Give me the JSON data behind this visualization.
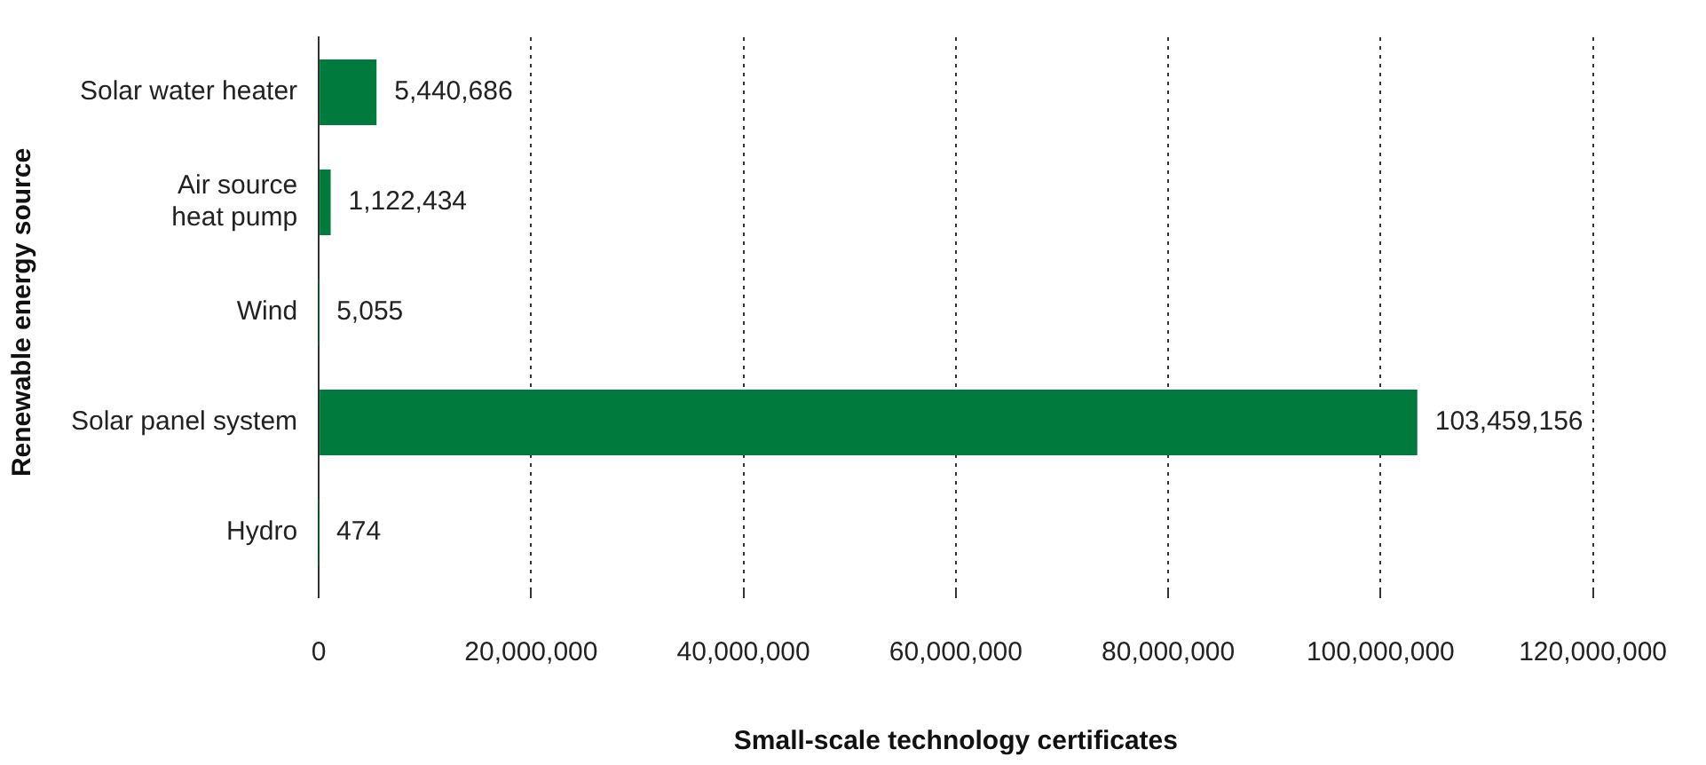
{
  "chart_data": {
    "type": "bar",
    "orientation": "horizontal",
    "xlabel": "Small-scale technology certificates",
    "ylabel": "Renewable energy source",
    "categories": [
      "Solar water heater",
      "Air source\nheat pump",
      "Wind",
      "Solar panel system",
      "Hydro"
    ],
    "values": [
      5440686,
      1122434,
      5055,
      103459156,
      474
    ],
    "value_labels": [
      "5,440,686",
      "1,122,434",
      "5,055",
      "103,459,156",
      "474"
    ],
    "color": "#007a3d",
    "xlim": [
      0,
      120000000
    ],
    "xticks": [
      0,
      {
        "value": 20000000,
        "label": "20,000,000"
      },
      {
        "value": 40000000,
        "label": "40,000,000"
      },
      {
        "value": 60000000,
        "label": "60,000,000"
      },
      {
        "value": 80000000,
        "label": "80,000,000"
      },
      {
        "value": 100000000,
        "label": "100,000,000"
      },
      {
        "value": 120000000,
        "label": "120,000,000"
      }
    ],
    "grid": "x"
  }
}
